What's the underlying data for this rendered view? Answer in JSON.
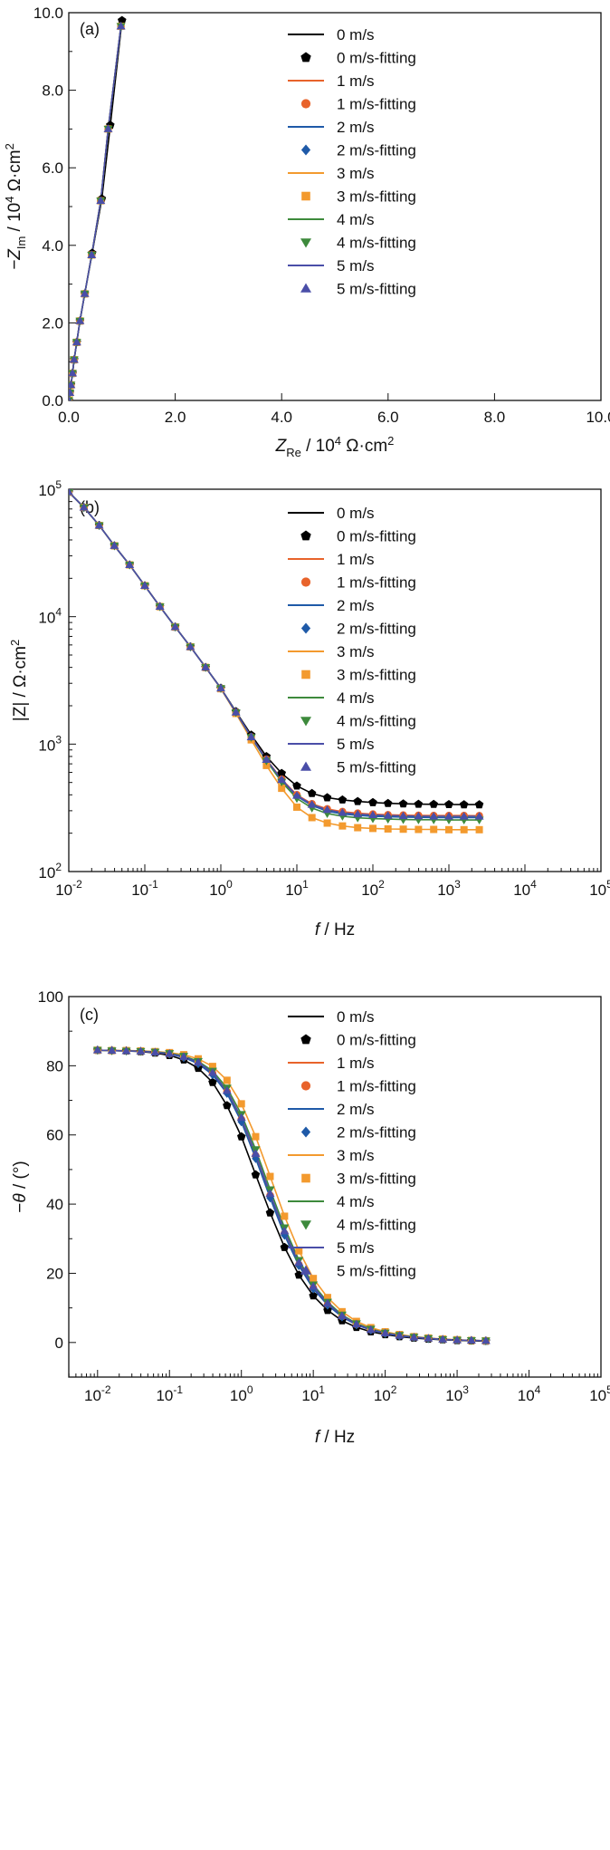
{
  "colors": {
    "0 m/s": "#000000",
    "1 m/s": "#e8632b",
    "2 m/s": "#1f5aa8",
    "3 m/s": "#f39a2e",
    "4 m/s": "#3d8a3c",
    "5 m/s": "#4a4ea8"
  },
  "chart_data": [
    {
      "type": "scatter",
      "panel_label": "(a)",
      "xlabel_parts": [
        "Z",
        "Re",
        " / 10",
        "4",
        " Ω·cm",
        "2"
      ],
      "ylabel_parts": [
        "−Z",
        "Im",
        " / 10",
        "4",
        " Ω·cm",
        "2"
      ],
      "xlim": [
        0,
        10
      ],
      "ylim": [
        0,
        10
      ],
      "xticks": [
        0,
        2,
        4,
        6,
        8,
        10
      ],
      "xtick_labels": [
        "0.0",
        "2.0",
        "4.0",
        "6.0",
        "8.0",
        "10.0"
      ],
      "yticks": [
        0,
        2,
        4,
        6,
        8,
        10
      ],
      "ytick_labels": [
        "0.0",
        "2.0",
        "4.0",
        "6.0",
        "8.0",
        "10.0"
      ],
      "legend_position": "top-right",
      "legend": [
        "0 m/s",
        "0 m/s-fitting",
        "1 m/s",
        "1 m/s-fitting",
        "2 m/s",
        "2 m/s-fitting",
        "3 m/s",
        "3 m/s-fitting",
        "4 m/s",
        "4 m/s-fitting",
        "5 m/s",
        "5 m/s-fitting"
      ],
      "series": [
        {
          "name": "0 m/s-fitting",
          "x": [
            0.0,
            0.02,
            0.04,
            0.07,
            0.1,
            0.15,
            0.21,
            0.3,
            0.44,
            0.62,
            0.78,
            1.0
          ],
          "y": [
            0.0,
            0.2,
            0.4,
            0.7,
            1.05,
            1.5,
            2.05,
            2.75,
            3.8,
            5.2,
            7.1,
            9.8
          ]
        },
        {
          "name": "1 m/s-fitting",
          "x": [
            0.0,
            0.02,
            0.04,
            0.07,
            0.1,
            0.15,
            0.21,
            0.3,
            0.43,
            0.6,
            0.74,
            0.98
          ],
          "y": [
            0.0,
            0.2,
            0.4,
            0.7,
            1.05,
            1.5,
            2.05,
            2.75,
            3.75,
            5.15,
            7.0,
            9.65
          ]
        },
        {
          "name": "2 m/s-fitting",
          "x": [
            0.0,
            0.02,
            0.04,
            0.07,
            0.1,
            0.15,
            0.21,
            0.3,
            0.43,
            0.6,
            0.74,
            0.98
          ],
          "y": [
            0.0,
            0.2,
            0.4,
            0.7,
            1.05,
            1.5,
            2.05,
            2.75,
            3.75,
            5.15,
            7.0,
            9.65
          ]
        },
        {
          "name": "3 m/s-fitting",
          "x": [
            0.0,
            0.02,
            0.04,
            0.07,
            0.1,
            0.15,
            0.21,
            0.3,
            0.43,
            0.6,
            0.74,
            0.98
          ],
          "y": [
            0.0,
            0.2,
            0.4,
            0.7,
            1.05,
            1.5,
            2.05,
            2.75,
            3.75,
            5.15,
            7.0,
            9.65
          ]
        },
        {
          "name": "4 m/s-fitting",
          "x": [
            0.0,
            0.02,
            0.04,
            0.07,
            0.1,
            0.15,
            0.21,
            0.3,
            0.43,
            0.6,
            0.74,
            0.98
          ],
          "y": [
            0.0,
            0.2,
            0.4,
            0.7,
            1.05,
            1.5,
            2.05,
            2.75,
            3.75,
            5.15,
            7.0,
            9.65
          ]
        },
        {
          "name": "5 m/s-fitting",
          "x": [
            0.0,
            0.02,
            0.04,
            0.07,
            0.1,
            0.15,
            0.21,
            0.3,
            0.43,
            0.6,
            0.74,
            0.98
          ],
          "y": [
            0.0,
            0.2,
            0.4,
            0.7,
            1.05,
            1.5,
            2.05,
            2.75,
            3.75,
            5.15,
            7.0,
            9.65
          ]
        }
      ]
    },
    {
      "type": "scatter",
      "panel_label": "(b)",
      "xscale": "log",
      "yscale": "log",
      "xlabel_parts": [
        "f",
        " / Hz"
      ],
      "ylabel_parts": [
        "|Z| / Ω·cm",
        "2"
      ],
      "xlim": [
        0.01,
        100000
      ],
      "ylim": [
        100,
        100000
      ],
      "xtick_exponents": [
        -2,
        -1,
        0,
        1,
        2,
        3,
        4,
        5
      ],
      "ytick_exponents": [
        2,
        3,
        4,
        5
      ],
      "tick_base": "10",
      "legend_position": "top-right",
      "legend": [
        "0 m/s",
        "0 m/s-fitting",
        "1 m/s",
        "1 m/s-fitting",
        "2 m/s",
        "2 m/s-fitting",
        "3 m/s",
        "3 m/s-fitting",
        "4 m/s",
        "4 m/s-fitting",
        "5 m/s",
        "5 m/s-fitting"
      ],
      "x": [
        0.01,
        0.0158,
        0.0251,
        0.0398,
        0.0631,
        0.1,
        0.158,
        0.251,
        0.398,
        0.631,
        1.0,
        1.58,
        2.51,
        3.98,
        6.31,
        10,
        15.8,
        25.1,
        39.8,
        63.1,
        100,
        158,
        251,
        398,
        631,
        1000,
        1580,
        2510
      ],
      "series": [
        {
          "name": "0 m/s-fitting",
          "values": [
            95000,
            72000,
            52000,
            36000,
            25500,
            17500,
            12000,
            8300,
            5800,
            4000,
            2750,
            1800,
            1180,
            800,
            590,
            470,
            410,
            380,
            365,
            355,
            348,
            343,
            340,
            338,
            337,
            336,
            335,
            335
          ]
        },
        {
          "name": "1 m/s-fitting",
          "values": [
            95000,
            72000,
            52000,
            36000,
            25500,
            17500,
            12000,
            8300,
            5800,
            4000,
            2740,
            1780,
            1140,
            760,
            530,
            400,
            340,
            310,
            295,
            287,
            282,
            279,
            277,
            276,
            275,
            275,
            275,
            274
          ]
        },
        {
          "name": "2 m/s-fitting",
          "values": [
            95000,
            72000,
            52000,
            36000,
            25500,
            17500,
            12000,
            8300,
            5800,
            4000,
            2740,
            1780,
            1140,
            750,
            520,
            390,
            330,
            298,
            283,
            276,
            271,
            269,
            267,
            266,
            265,
            265,
            265,
            265
          ]
        },
        {
          "name": "3 m/s-fitting",
          "values": [
            95000,
            72000,
            52000,
            36000,
            25500,
            17500,
            12000,
            8300,
            5800,
            4000,
            2720,
            1740,
            1080,
            680,
            450,
            320,
            265,
            240,
            228,
            221,
            218,
            216,
            215,
            214,
            214,
            213,
            213,
            213
          ]
        },
        {
          "name": "4 m/s-fitting",
          "values": [
            95000,
            72000,
            52000,
            36000,
            25500,
            17500,
            12000,
            8300,
            5800,
            4000,
            2740,
            1770,
            1130,
            740,
            505,
            375,
            315,
            285,
            272,
            264,
            260,
            258,
            256,
            255,
            255,
            254,
            254,
            254
          ]
        },
        {
          "name": "5 m/s-fitting",
          "values": [
            95000,
            72000,
            52000,
            36000,
            25500,
            17500,
            12000,
            8300,
            5800,
            4000,
            2740,
            1775,
            1135,
            755,
            525,
            395,
            335,
            305,
            290,
            282,
            278,
            275,
            273,
            272,
            271,
            271,
            271,
            271
          ]
        }
      ]
    },
    {
      "type": "scatter",
      "panel_label": "(c)",
      "xscale": "log",
      "xlabel_parts": [
        "f",
        " / Hz"
      ],
      "ylabel_parts": [
        "−",
        "θ",
        " / (°)"
      ],
      "xlim": [
        0.00398,
        100000
      ],
      "ylim": [
        -10,
        100
      ],
      "xtick_exponents": [
        -2,
        -1,
        0,
        1,
        2,
        3,
        4,
        5
      ],
      "tick_base": "10",
      "yticks": [
        0,
        20,
        40,
        60,
        80,
        100
      ],
      "ytick_labels": [
        "0",
        "20",
        "40",
        "60",
        "80",
        "100"
      ],
      "legend_position": "top-right",
      "legend": [
        "0 m/s",
        "0 m/s-fitting",
        "1 m/s",
        "1 m/s-fitting",
        "2 m/s",
        "2 m/s-fitting",
        "3 m/s",
        "3 m/s-fitting",
        "4 m/s",
        "4 m/s-fitting",
        "5 m/s",
        "5 m/s-fitting"
      ],
      "x": [
        0.01,
        0.0158,
        0.0251,
        0.0398,
        0.0631,
        0.1,
        0.158,
        0.251,
        0.398,
        0.631,
        1.0,
        1.58,
        2.51,
        3.98,
        6.31,
        10,
        15.8,
        25.1,
        39.8,
        63.1,
        100,
        158,
        251,
        398,
        631,
        1000,
        1580,
        2510
      ],
      "series": [
        {
          "name": "0 m/s-fitting",
          "values": [
            84.5,
            84.4,
            84.3,
            84.1,
            83.7,
            83.0,
            81.7,
            79.3,
            75.2,
            68.5,
            59.5,
            48.5,
            37.5,
            27.5,
            19.5,
            13.5,
            9.3,
            6.3,
            4.4,
            3.1,
            2.3,
            1.7,
            1.3,
            1.0,
            0.8,
            0.6,
            0.5,
            0.4
          ]
        },
        {
          "name": "1 m/s-fitting",
          "values": [
            84.5,
            84.4,
            84.3,
            84.2,
            83.9,
            83.4,
            82.5,
            80.8,
            77.8,
            72.5,
            64.5,
            54.0,
            42.5,
            31.5,
            22.5,
            15.8,
            11.0,
            7.5,
            5.2,
            3.7,
            2.7,
            2.0,
            1.5,
            1.2,
            0.9,
            0.7,
            0.6,
            0.5
          ]
        },
        {
          "name": "2 m/s-fitting",
          "values": [
            84.5,
            84.4,
            84.3,
            84.2,
            83.9,
            83.4,
            82.4,
            80.6,
            77.4,
            72.0,
            63.8,
            53.2,
            41.8,
            31.0,
            22.2,
            15.5,
            10.8,
            7.4,
            5.1,
            3.6,
            2.6,
            1.9,
            1.5,
            1.1,
            0.9,
            0.7,
            0.6,
            0.5
          ]
        },
        {
          "name": "3 m/s-fitting",
          "values": [
            84.5,
            84.4,
            84.4,
            84.3,
            84.1,
            83.8,
            83.2,
            82.0,
            79.8,
            75.8,
            69.0,
            59.5,
            48.0,
            36.5,
            26.5,
            18.5,
            13.0,
            8.9,
            6.1,
            4.3,
            3.1,
            2.3,
            1.7,
            1.3,
            1.0,
            0.8,
            0.6,
            0.5
          ]
        },
        {
          "name": "4 m/s-fitting",
          "values": [
            84.5,
            84.4,
            84.3,
            84.2,
            84.0,
            83.6,
            82.8,
            81.3,
            78.5,
            73.6,
            66.0,
            55.8,
            44.2,
            33.2,
            23.8,
            16.7,
            11.7,
            8.0,
            5.5,
            3.9,
            2.8,
            2.1,
            1.6,
            1.2,
            0.9,
            0.7,
            0.6,
            0.5
          ]
        },
        {
          "name": "5 m/s-fitting",
          "values": [
            84.5,
            84.4,
            84.3,
            84.2,
            83.9,
            83.5,
            82.6,
            81.0,
            78.0,
            72.8,
            65.0,
            54.6,
            43.0,
            32.2,
            23.1,
            16.2,
            11.3,
            7.7,
            5.3,
            3.7,
            2.7,
            2.0,
            1.5,
            1.2,
            0.9,
            0.7,
            0.6,
            0.5
          ]
        }
      ]
    }
  ]
}
